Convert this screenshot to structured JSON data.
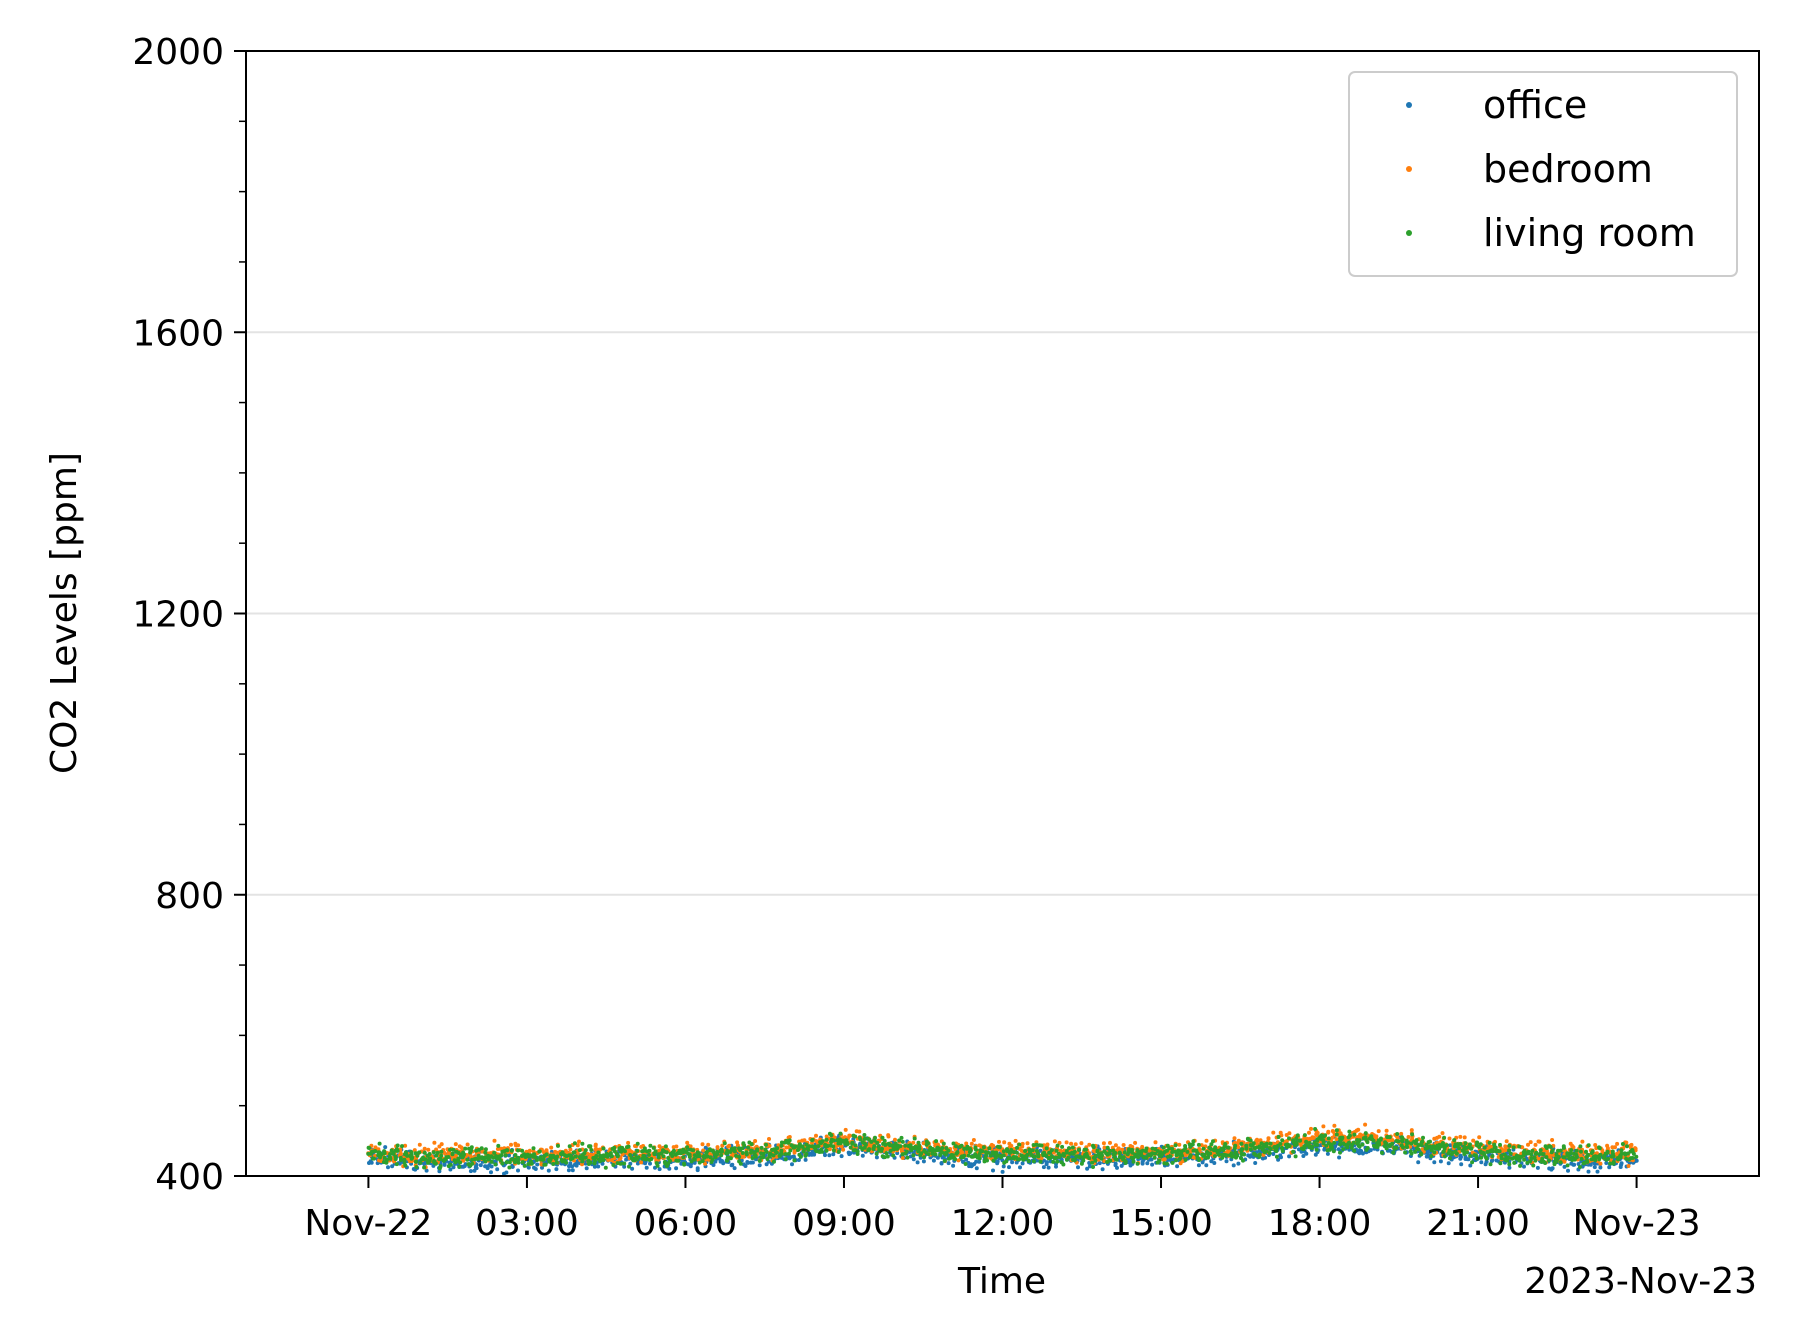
{
  "chart_data": {
    "type": "scatter",
    "title": "",
    "xlabel": "Time",
    "ylabel": "CO2 Levels [ppm]",
    "x_offset_label": "2023-Nov-23",
    "xlim": [
      "2023-11-21T21:41",
      "2023-11-23T02:19"
    ],
    "ylim": [
      400,
      2000
    ],
    "x_ticks": [
      {
        "time": "2023-11-22T00:00",
        "label": "Nov-22"
      },
      {
        "time": "2023-11-22T03:00",
        "label": "03:00"
      },
      {
        "time": "2023-11-22T06:00",
        "label": "06:00"
      },
      {
        "time": "2023-11-22T09:00",
        "label": "09:00"
      },
      {
        "time": "2023-11-22T12:00",
        "label": "12:00"
      },
      {
        "time": "2023-11-22T15:00",
        "label": "15:00"
      },
      {
        "time": "2023-11-22T18:00",
        "label": "18:00"
      },
      {
        "time": "2023-11-22T21:00",
        "label": "21:00"
      },
      {
        "time": "2023-11-23T00:00",
        "label": "Nov-23"
      }
    ],
    "y_ticks": [
      {
        "value": 400,
        "label": "400"
      },
      {
        "value": 800,
        "label": "800"
      },
      {
        "value": 1200,
        "label": "1200"
      },
      {
        "value": 1600,
        "label": "1600"
      },
      {
        "value": 2000,
        "label": "2000"
      }
    ],
    "y_minor_step": 100,
    "grid": "horizontal major",
    "legend_position": "top-right",
    "series": [
      {
        "name": "office",
        "color": "#1f77b4",
        "points": [
          [
            "2023-11-22T00:00",
            428
          ],
          [
            "2023-11-22T01:00",
            422
          ],
          [
            "2023-11-22T02:00",
            420
          ],
          [
            "2023-11-22T03:00",
            421
          ],
          [
            "2023-11-22T04:00",
            423
          ],
          [
            "2023-11-22T05:00",
            425
          ],
          [
            "2023-11-22T06:00",
            424
          ],
          [
            "2023-11-22T07:00",
            427
          ],
          [
            "2023-11-22T08:00",
            432
          ],
          [
            "2023-11-22T09:00",
            443
          ],
          [
            "2023-11-22T10:00",
            436
          ],
          [
            "2023-11-22T11:00",
            428
          ],
          [
            "2023-11-22T12:00",
            425
          ],
          [
            "2023-11-22T13:00",
            424
          ],
          [
            "2023-11-22T14:00",
            425
          ],
          [
            "2023-11-22T15:00",
            424
          ],
          [
            "2023-11-22T16:00",
            428
          ],
          [
            "2023-11-22T17:00",
            435
          ],
          [
            "2023-11-22T18:00",
            444
          ],
          [
            "2023-11-22T19:00",
            442
          ],
          [
            "2023-11-22T20:00",
            435
          ],
          [
            "2023-11-22T21:00",
            428
          ],
          [
            "2023-11-22T22:00",
            424
          ],
          [
            "2023-11-22T23:00",
            423
          ],
          [
            "2023-11-23T00:00",
            424
          ]
        ]
      },
      {
        "name": "bedroom",
        "color": "#ff7f0e",
        "points": [
          [
            "2023-11-22T00:00",
            432
          ],
          [
            "2023-11-22T01:00",
            430
          ],
          [
            "2023-11-22T02:00",
            432
          ],
          [
            "2023-11-22T03:00",
            430
          ],
          [
            "2023-11-22T04:00",
            431
          ],
          [
            "2023-11-22T05:00",
            433
          ],
          [
            "2023-11-22T06:00",
            432
          ],
          [
            "2023-11-22T07:00",
            434
          ],
          [
            "2023-11-22T08:00",
            440
          ],
          [
            "2023-11-22T09:00",
            451
          ],
          [
            "2023-11-22T10:00",
            444
          ],
          [
            "2023-11-22T11:00",
            438
          ],
          [
            "2023-11-22T12:00",
            436
          ],
          [
            "2023-11-22T13:00",
            434
          ],
          [
            "2023-11-22T14:00",
            433
          ],
          [
            "2023-11-22T15:00",
            434
          ],
          [
            "2023-11-22T16:00",
            437
          ],
          [
            "2023-11-22T17:00",
            446
          ],
          [
            "2023-11-22T18:00",
            456
          ],
          [
            "2023-11-22T19:00",
            455
          ],
          [
            "2023-11-22T20:00",
            448
          ],
          [
            "2023-11-22T21:00",
            440
          ],
          [
            "2023-11-22T22:00",
            434
          ],
          [
            "2023-11-22T23:00",
            433
          ],
          [
            "2023-11-23T00:00",
            433
          ]
        ]
      },
      {
        "name": "living room",
        "color": "#2ca02c",
        "points": [
          [
            "2023-11-22T00:00",
            431
          ],
          [
            "2023-11-22T01:00",
            427
          ],
          [
            "2023-11-22T02:00",
            426
          ],
          [
            "2023-11-22T03:00",
            425
          ],
          [
            "2023-11-22T04:00",
            428
          ],
          [
            "2023-11-22T05:00",
            430
          ],
          [
            "2023-11-22T06:00",
            429
          ],
          [
            "2023-11-22T07:00",
            432
          ],
          [
            "2023-11-22T08:00",
            438
          ],
          [
            "2023-11-22T09:00",
            448
          ],
          [
            "2023-11-22T10:00",
            441
          ],
          [
            "2023-11-22T11:00",
            434
          ],
          [
            "2023-11-22T12:00",
            431
          ],
          [
            "2023-11-22T13:00",
            430
          ],
          [
            "2023-11-22T14:00",
            429
          ],
          [
            "2023-11-22T15:00",
            430
          ],
          [
            "2023-11-22T16:00",
            433
          ],
          [
            "2023-11-22T17:00",
            441
          ],
          [
            "2023-11-22T18:00",
            450
          ],
          [
            "2023-11-22T19:00",
            449
          ],
          [
            "2023-11-22T20:00",
            441
          ],
          [
            "2023-11-22T21:00",
            434
          ],
          [
            "2023-11-22T22:00",
            429
          ],
          [
            "2023-11-22T23:00",
            428
          ],
          [
            "2023-11-23T00:00",
            429
          ]
        ]
      }
    ]
  }
}
